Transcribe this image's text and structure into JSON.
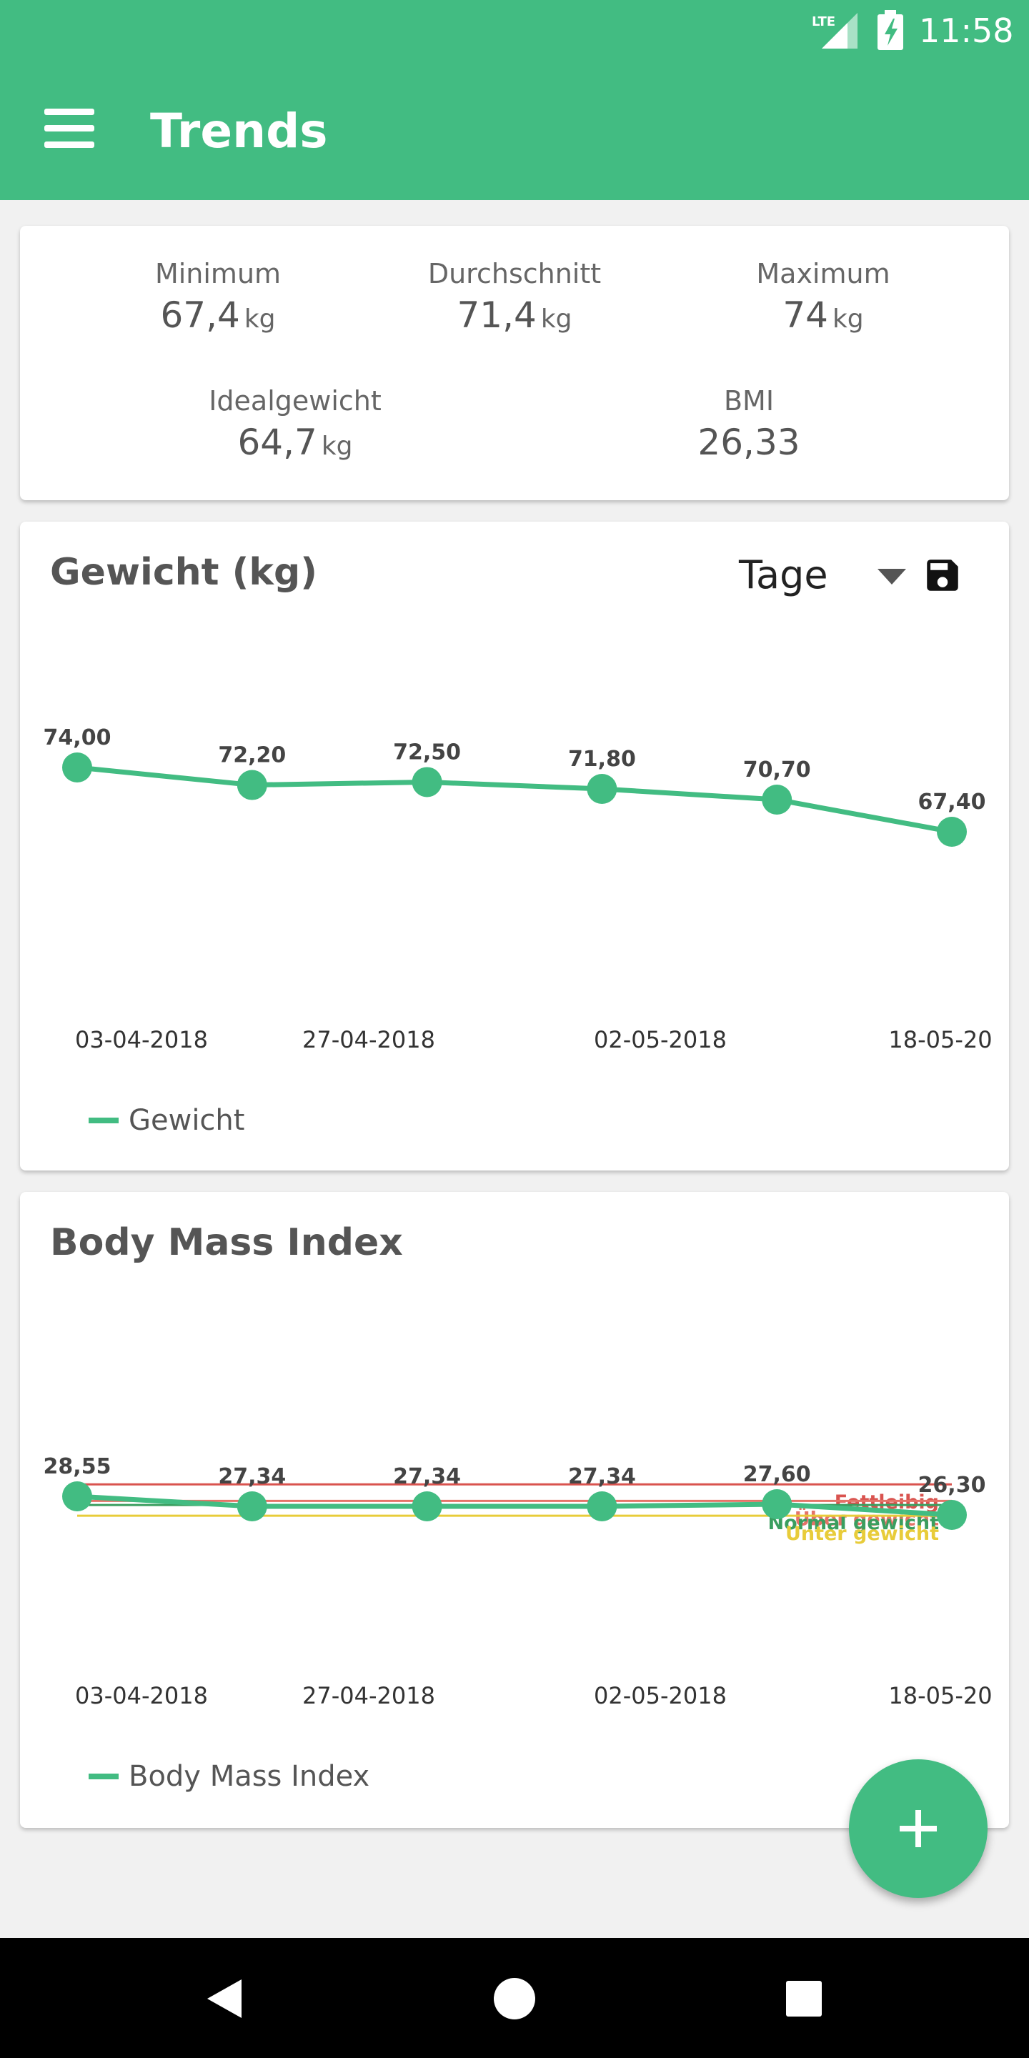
{
  "status_bar": {
    "network": "LTE",
    "time": "11:58",
    "icons": [
      "lte-signal-icon",
      "battery-charging-icon"
    ]
  },
  "app_bar": {
    "title": "Trends",
    "menu_icon": "hamburger-menu-icon"
  },
  "summary": {
    "minimum": {
      "label": "Minimum",
      "value": "67,4",
      "unit": "kg"
    },
    "average": {
      "label": "Durchschnitt",
      "value": "71,4",
      "unit": "kg"
    },
    "maximum": {
      "label": "Maximum",
      "value": "74",
      "unit": "kg"
    },
    "ideal": {
      "label": "Idealgewicht",
      "value": "64,7",
      "unit": "kg"
    },
    "bmi": {
      "label": "BMI",
      "value": "26,33"
    }
  },
  "weight_card": {
    "title": "Gewicht (kg)",
    "period": "Tage",
    "save_icon": "save-floppy-icon"
  },
  "bmi_card": {
    "title": "Body Mass Index"
  },
  "chart_data": [
    {
      "type": "line",
      "title": "Gewicht (kg)",
      "x_ticks": [
        "03-04-2018",
        "27-04-2018",
        "02-05-2018",
        "18-05-20"
      ],
      "series": [
        {
          "name": "Gewicht",
          "color": "#42bc82",
          "values": [
            74.0,
            72.2,
            72.5,
            71.8,
            70.7,
            67.4
          ],
          "labels": [
            "74,00",
            "72,20",
            "72,50",
            "71,80",
            "70,70",
            "67,40"
          ]
        }
      ],
      "legend": "bottom-left",
      "grid": false
    },
    {
      "type": "line",
      "title": "Body Mass Index",
      "x_ticks": [
        "03-04-2018",
        "27-04-2018",
        "02-05-2018",
        "18-05-20"
      ],
      "series": [
        {
          "name": "Body Mass Index",
          "color": "#42bc82",
          "values": [
            28.55,
            27.34,
            27.34,
            27.34,
            27.6,
            26.3
          ],
          "labels": [
            "28,55",
            "27,34",
            "27,34",
            "27,34",
            "27,60",
            "26,30"
          ]
        }
      ],
      "reference_lines": [
        {
          "label": "Fettleibig",
          "value": 30,
          "color": "#d9534f"
        },
        {
          "label": "Über gewicht",
          "value": 28,
          "color": "#e57368"
        },
        {
          "label": "Normal gewicht",
          "value": 27.5,
          "color": "#3a9e5f"
        },
        {
          "label": "Unter gewicht",
          "value": 26.2,
          "color": "#e8cc3a"
        }
      ],
      "legend": "bottom-left",
      "grid": false
    }
  ],
  "fab": {
    "icon": "plus-icon"
  },
  "nav_bar": {
    "icons": [
      "back-triangle-icon",
      "home-circle-icon",
      "recents-square-icon"
    ]
  }
}
